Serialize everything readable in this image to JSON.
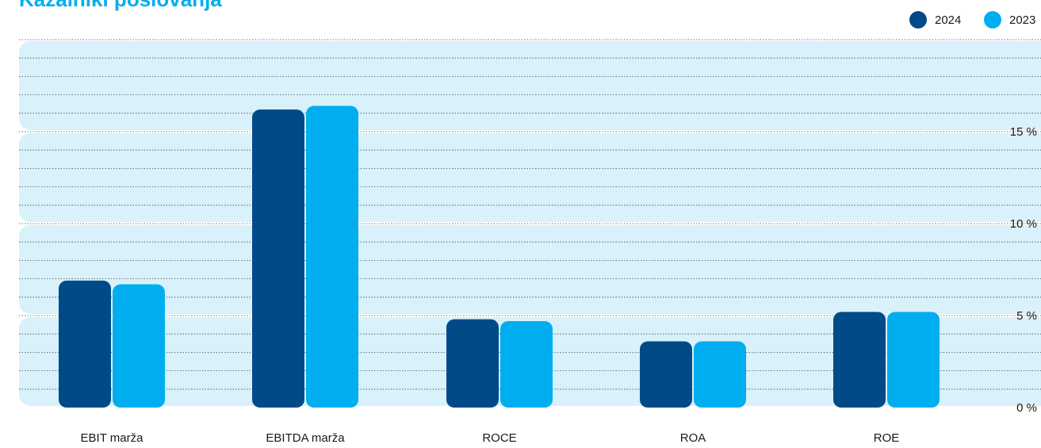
{
  "title": "Kazalniki poslovanja",
  "colors": {
    "series_2024": "#004b87",
    "series_2023": "#00aeef",
    "band": "#d8f1fa",
    "gridline": "#4d4d4d",
    "title": "#00aeef"
  },
  "chart_data": {
    "type": "bar",
    "title": "Kazalniki poslovanja",
    "categories": [
      "EBIT marža",
      "EBITDA marža",
      "ROCE",
      "ROA",
      "ROE"
    ],
    "series": [
      {
        "name": "2024",
        "color": "#004b87",
        "values": [
          6.9,
          16.2,
          4.8,
          3.6,
          5.2
        ]
      },
      {
        "name": "2023",
        "color": "#00aeef",
        "values": [
          6.7,
          16.4,
          4.7,
          3.6,
          5.2
        ]
      }
    ],
    "y_ticks": [
      "0 %",
      "5 %",
      "10 %",
      "15 %"
    ],
    "ylim": [
      0,
      20
    ],
    "grid": true,
    "legend_position": "top-right"
  }
}
